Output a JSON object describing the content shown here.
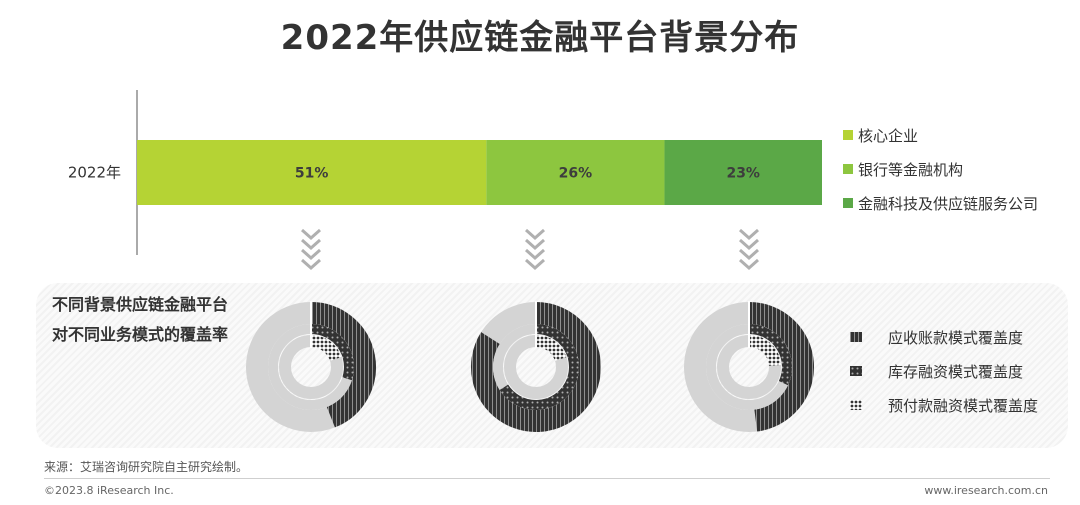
{
  "page": {
    "title": "2022年供应链金融平台背景分布",
    "source": "来源：艾瑞咨询研究院自主研究绘制。",
    "copyright": "©2023.8 iResearch Inc.",
    "website": "www.iresearch.com.cn"
  },
  "chart_data": [
    {
      "type": "bar",
      "orientation": "horizontal",
      "stacked": true,
      "categories": [
        "2022年"
      ],
      "series": [
        {
          "name": "核心企业",
          "values": [
            51
          ],
          "color": "#b5d334",
          "label": "51%"
        },
        {
          "name": "银行等金融机构",
          "values": [
            26
          ],
          "color": "#8dc63f",
          "label": "26%"
        },
        {
          "name": "金融科技及供应链服务公司",
          "values": [
            23
          ],
          "color": "#5ba847",
          "label": "23%"
        }
      ],
      "xlim": [
        0,
        100
      ],
      "legend": "right"
    },
    {
      "type": "pie",
      "subtype": "concentric-donut",
      "title": "不同背景供应链金融平台对不同业务模式的覆盖率",
      "title_lines": [
        "不同背景供应链金融平台",
        "对不同业务模式的覆盖率"
      ],
      "ring_labels": [
        "应收账款模式覆盖度",
        "库存融资模式覆盖度",
        "预付款融资模式覆盖度"
      ],
      "groups": [
        {
          "platform": "核心企业",
          "values": [
            0.44,
            0.3,
            0.2
          ],
          "color": "#b5d334"
        },
        {
          "platform": "银行等金融机构",
          "values": [
            0.84,
            0.66,
            0.2
          ],
          "color": "#8dc63f"
        },
        {
          "platform": "金融科技及供应链服务公司",
          "values": [
            0.48,
            0.32,
            0.24
          ],
          "color": "#5ba847"
        }
      ],
      "legend": "right"
    }
  ]
}
